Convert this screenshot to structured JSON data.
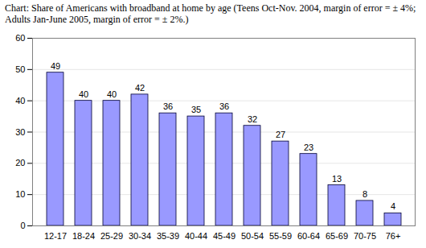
{
  "chart_data": {
    "type": "bar",
    "title": "Chart: Share of Americans with broadband at home by age (Teens Oct-Nov. 2004, margin of error = ± 4%; Adults Jan-June 2005, margin of error = ± 2%.)",
    "categories": [
      "12-17",
      "18-24",
      "25-29",
      "30-34",
      "35-39",
      "40-44",
      "45-49",
      "50-54",
      "55-59",
      "60-64",
      "65-69",
      "70-75",
      "76+"
    ],
    "values": [
      49,
      40,
      40,
      42,
      36,
      35,
      36,
      32,
      27,
      23,
      13,
      8,
      4
    ],
    "color": "#9999ff",
    "ylim": [
      0,
      60
    ],
    "yticks": [
      0,
      10,
      20,
      30,
      40,
      50,
      60
    ],
    "grid": true,
    "data_labels": true
  }
}
